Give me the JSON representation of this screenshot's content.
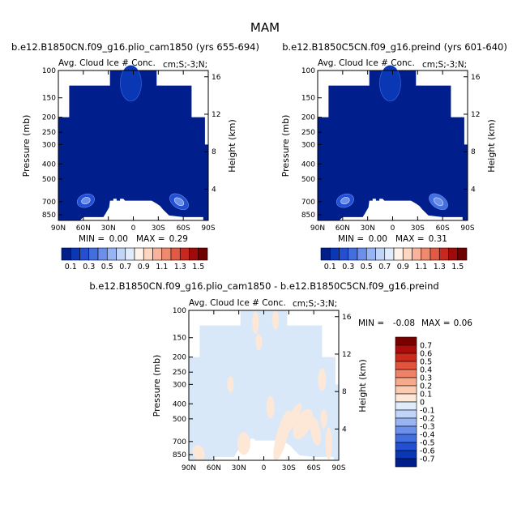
{
  "figure": {
    "season": "MAM"
  },
  "palettes": {
    "abs": [
      "#001e8c",
      "#0a37b4",
      "#234fd2",
      "#416ee1",
      "#6b8fea",
      "#98b4f2",
      "#c1d5f8",
      "#e0ecfc",
      "#fff2e8",
      "#fdd6c0",
      "#f8b39a",
      "#f08a6e",
      "#e25a44",
      "#c8281e",
      "#a00a0a",
      "#6e0000"
    ],
    "diff": [
      "#001e8c",
      "#0a37b4",
      "#234fd2",
      "#416ee1",
      "#6b8fea",
      "#98b4f2",
      "#c1d5f8",
      "#e0ecfc",
      "#fde7d7",
      "#fbcab0",
      "#f7a98c",
      "#ef8266",
      "#e2533e",
      "#cc2a1c",
      "#ac0c0c",
      "#7a0000"
    ]
  },
  "chart_data": [
    {
      "type": "heatmap",
      "title": "b.e12.B1850CN.f09_g16.plio_cam1850 (yrs 655-694)",
      "subtitle": "Avg. Cloud Ice # Conc.",
      "units": "cm;S;-3;N;",
      "ylabel": "Pressure (mb)",
      "y2label": "Height (km)",
      "x_ticks": [
        "90N",
        "60N",
        "30N",
        "0",
        "30S",
        "60S",
        "90S"
      ],
      "x_tick_values": [
        90,
        60,
        30,
        0,
        -30,
        -60,
        -90
      ],
      "y_ticks": [
        "100",
        "150",
        "200",
        "250",
        "300",
        "400",
        "500",
        "700",
        "850"
      ],
      "y_tick_values": [
        100,
        150,
        200,
        250,
        300,
        400,
        500,
        700,
        850
      ],
      "y2_ticks": [
        "16",
        "12",
        "8",
        "4"
      ],
      "y2_tick_values": [
        16,
        12,
        8,
        4
      ],
      "min_label": "MIN =",
      "min_value": "0.00",
      "max_label": "MAX =",
      "max_value": "0.29",
      "colorbar_labels": [
        "0.1",
        "0.3",
        "0.5",
        "0.7",
        "0.9",
        "1.1",
        "1.3",
        "1.5"
      ],
      "colorbar_levels": [
        0.1,
        0.2,
        0.3,
        0.4,
        0.5,
        0.6,
        0.7,
        0.8,
        0.9,
        1.0,
        1.1,
        1.2,
        1.3,
        1.4,
        1.5
      ],
      "features": [
        {
          "lat": 3,
          "p": 115,
          "value": 0.1
        },
        {
          "lat": 57,
          "p": 690,
          "value": 0.2
        },
        {
          "lat": -55,
          "p": 700,
          "value": 0.25
        }
      ]
    },
    {
      "type": "heatmap",
      "title": "b.e12.B1850C5CN.f09_g16.preind (yrs 601-640)",
      "subtitle": "Avg. Cloud Ice # Conc.",
      "units": "cm;S;-3;N;",
      "ylabel": "Pressure (mb)",
      "y2label": "Height (km)",
      "x_ticks": [
        "90N",
        "60N",
        "30N",
        "0",
        "30S",
        "60S",
        "90S"
      ],
      "x_tick_values": [
        90,
        60,
        30,
        0,
        -30,
        -60,
        -90
      ],
      "y_ticks": [
        "100",
        "150",
        "200",
        "250",
        "300",
        "400",
        "500",
        "700",
        "850"
      ],
      "y_tick_values": [
        100,
        150,
        200,
        250,
        300,
        400,
        500,
        700,
        850
      ],
      "y2_ticks": [
        "16",
        "12",
        "8",
        "4"
      ],
      "y2_tick_values": [
        16,
        12,
        8,
        4
      ],
      "min_label": "MIN =",
      "min_value": "0.00",
      "max_label": "MAX =",
      "max_value": "0.31",
      "colorbar_labels": [
        "0.1",
        "0.3",
        "0.5",
        "0.7",
        "0.9",
        "1.1",
        "1.3",
        "1.5"
      ],
      "colorbar_levels": [
        0.1,
        0.2,
        0.3,
        0.4,
        0.5,
        0.6,
        0.7,
        0.8,
        0.9,
        1.0,
        1.1,
        1.2,
        1.3,
        1.4,
        1.5
      ],
      "features": [
        {
          "lat": 3,
          "p": 115,
          "value": 0.1
        },
        {
          "lat": 57,
          "p": 690,
          "value": 0.2
        },
        {
          "lat": -55,
          "p": 700,
          "value": 0.3
        }
      ]
    },
    {
      "type": "heatmap",
      "title": "b.e12.B1850CN.f09_g16.plio_cam1850 - b.e12.B1850C5CN.f09_g16.preind",
      "subtitle": "Avg. Cloud Ice # Conc.",
      "units": "cm;S;-3;N;",
      "ylabel": "Pressure (mb)",
      "y2label": "Height (km)",
      "x_ticks": [
        "90N",
        "60N",
        "30N",
        "0",
        "30S",
        "60S",
        "90S"
      ],
      "x_tick_values": [
        90,
        60,
        30,
        0,
        -30,
        -60,
        -90
      ],
      "y_ticks": [
        "100",
        "150",
        "200",
        "250",
        "300",
        "400",
        "500",
        "700",
        "850"
      ],
      "y_tick_values": [
        100,
        150,
        200,
        250,
        300,
        400,
        500,
        700,
        850
      ],
      "y2_ticks": [
        "16",
        "12",
        "8",
        "4"
      ],
      "y2_tick_values": [
        16,
        12,
        8,
        4
      ],
      "min_label": "MIN =",
      "min_value": "-0.08",
      "max_label": "MAX =",
      "max_value": "0.06",
      "colorbar_labels": [
        "0.7",
        "0.6",
        "0.5",
        "0.4",
        "0.3",
        "0.2",
        "0.1",
        "0",
        "-0.1",
        "-0.2",
        "-0.3",
        "-0.4",
        "-0.5",
        "-0.6",
        "-0.7"
      ],
      "colorbar_levels": [
        0.7,
        0.6,
        0.5,
        0.4,
        0.3,
        0.2,
        0.1,
        0,
        -0.1,
        -0.2,
        -0.3,
        -0.4,
        -0.5,
        -0.6,
        -0.7
      ]
    }
  ]
}
